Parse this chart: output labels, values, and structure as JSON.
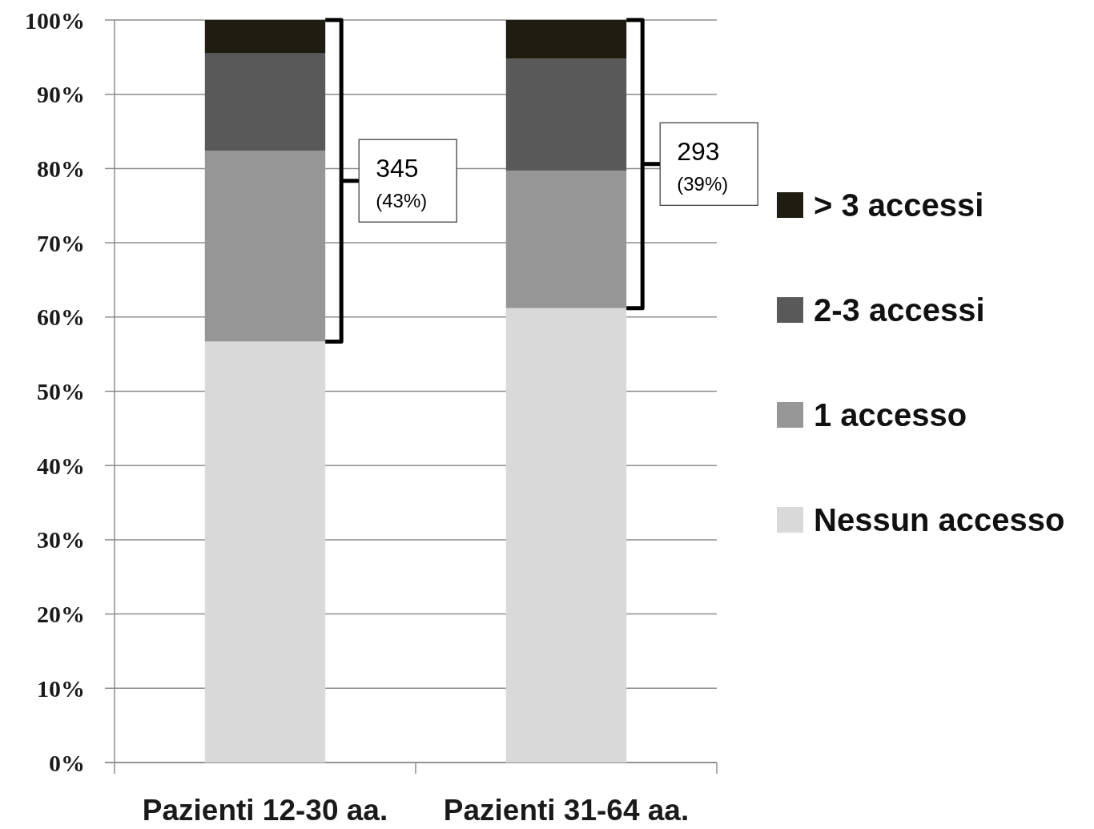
{
  "chart_data": {
    "type": "bar",
    "stacked": true,
    "categories": [
      "Pazienti 12-30 aa.",
      "Pazienti 31-64 aa."
    ],
    "series": [
      {
        "name": "Nessun accesso",
        "color": "#d9d9d9",
        "values": [
          56.7,
          61.2
        ]
      },
      {
        "name": "1 accesso",
        "color": "#969696",
        "values": [
          25.7,
          18.5
        ]
      },
      {
        "name": "2-3 accessi",
        "color": "#595959",
        "values": [
          13.1,
          15.1
        ]
      },
      {
        "name": "> 3 accessi",
        "color": "#1f1c12",
        "values": [
          4.5,
          5.2
        ]
      }
    ],
    "ylim": [
      0,
      100
    ],
    "yticks": [
      {
        "value": 0,
        "label": "0%"
      },
      {
        "value": 10,
        "label": "10%"
      },
      {
        "value": 20,
        "label": "20%"
      },
      {
        "value": 30,
        "label": "30%"
      },
      {
        "value": 40,
        "label": "40%"
      },
      {
        "value": 50,
        "label": "50%"
      },
      {
        "value": 60,
        "label": "60%"
      },
      {
        "value": 70,
        "label": "70%"
      },
      {
        "value": 80,
        "label": "80%"
      },
      {
        "value": 90,
        "label": "90%"
      },
      {
        "value": 100,
        "label": "100%"
      }
    ],
    "grid": "y",
    "legend": "right",
    "annotations": [
      "345 (43%)",
      "293 (39%)"
    ]
  }
}
